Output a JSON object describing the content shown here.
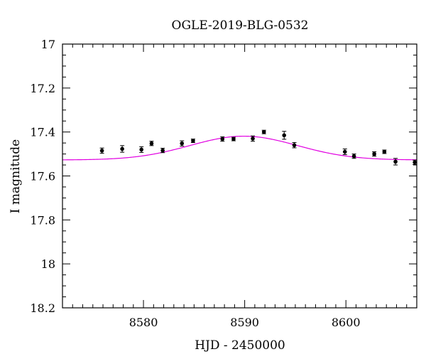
{
  "chart_data": {
    "type": "scatter",
    "title": "OGLE-2019-BLG-0532",
    "xlabel": "HJD - 2450000",
    "ylabel": "I magnitude",
    "xlim": [
      8572,
      8607
    ],
    "ylim": [
      17.0,
      18.2
    ],
    "y_inverted": true,
    "grid": false,
    "x_major_ticks": [
      8580,
      8590,
      8600
    ],
    "x_tick_labels": [
      "8580",
      "8590",
      "8600"
    ],
    "x_minor_step": 1,
    "y_major_ticks": [
      17.0,
      17.2,
      17.4,
      17.6,
      17.8,
      18.0,
      18.2
    ],
    "y_tick_labels": [
      "17",
      "17.2",
      "17.4",
      "17.6",
      "17.8",
      "18",
      "18.2"
    ],
    "y_minor_step": 0.05,
    "point_color": "#000000",
    "model_color": "#e100e1",
    "series": [
      {
        "type": "scatter-errorbar",
        "x": [
          8575.9,
          8577.9,
          8579.8,
          8580.8,
          8581.9,
          8583.8,
          8584.9,
          8587.8,
          8588.9,
          8590.8,
          8591.9,
          8593.9,
          8594.9,
          8599.9,
          8600.8,
          8602.8,
          8603.8,
          8604.9,
          8606.8
        ],
        "y": [
          17.485,
          17.477,
          17.48,
          17.452,
          17.484,
          17.452,
          17.44,
          17.432,
          17.432,
          17.43,
          17.4,
          17.415,
          17.46,
          17.49,
          17.51,
          17.5,
          17.49,
          17.535,
          17.538
        ],
        "yerr": [
          0.012,
          0.015,
          0.013,
          0.01,
          0.01,
          0.012,
          0.008,
          0.01,
          0.008,
          0.012,
          0.008,
          0.018,
          0.012,
          0.013,
          0.01,
          0.01,
          0.008,
          0.015,
          0.01
        ]
      },
      {
        "type": "line",
        "model": {
          "baseline": 17.527,
          "amplitude": 0.108,
          "t0": 8589.9,
          "width": 7.5
        }
      }
    ]
  }
}
